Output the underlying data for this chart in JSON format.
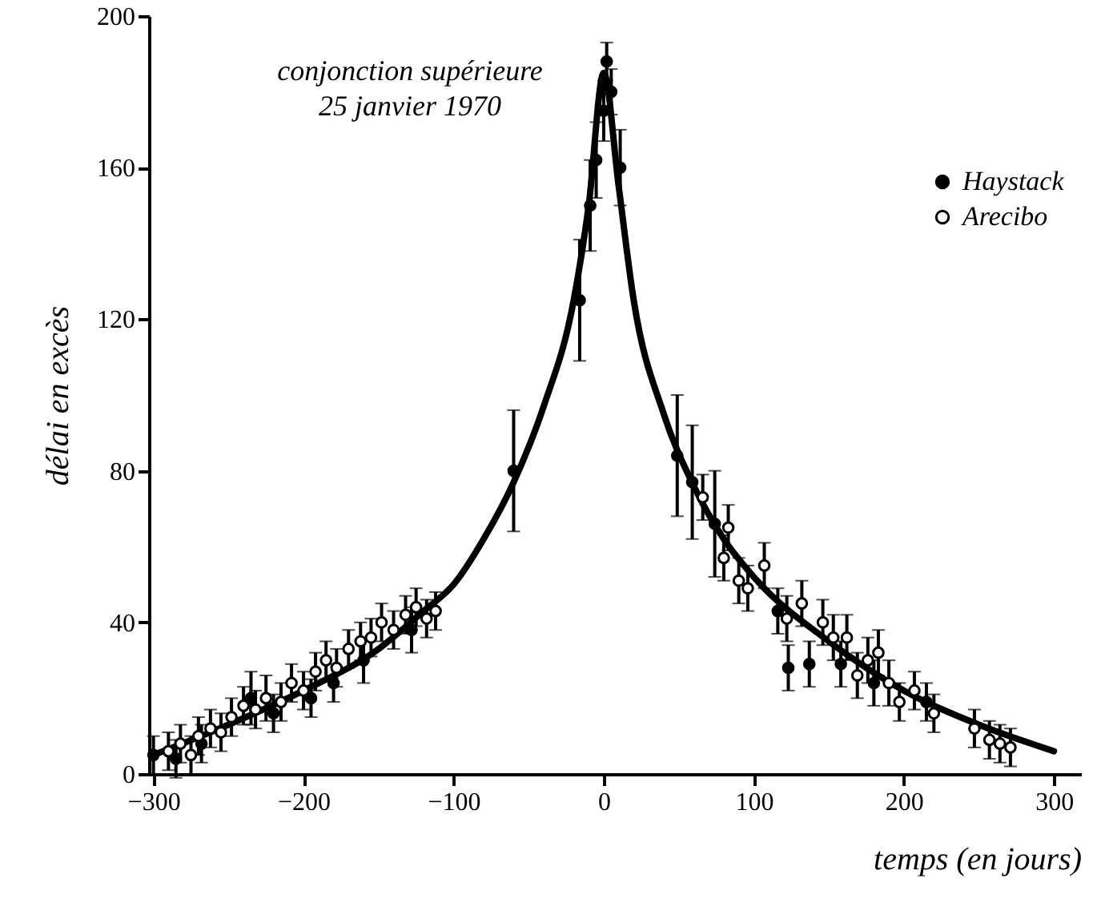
{
  "chart_data": {
    "type": "scatter",
    "xlabel": "temps (en jours)",
    "ylabel": "délai en excès",
    "annotations": [
      "conjonction supérieure\n25 janvier 1970"
    ],
    "xlim": [
      -303,
      318
    ],
    "ylim": [
      0,
      200
    ],
    "xticks": [
      -300,
      -200,
      -100,
      0,
      100,
      200,
      300
    ],
    "yticks": [
      0,
      40,
      80,
      120,
      160,
      200
    ],
    "grid": false,
    "legend": "top right",
    "series": [
      {
        "name": "Haystack",
        "color": "#000000",
        "marker": "circle",
        "x": [
          -300,
          -285,
          -268,
          -245,
          -235,
          -220,
          -195,
          -180,
          -160,
          -128,
          -60,
          -16,
          -9,
          -5,
          0,
          2,
          5,
          8,
          11,
          49,
          59,
          74,
          116,
          123,
          137,
          158,
          180,
          215
        ],
        "values": [
          5,
          4,
          8,
          null,
          20,
          16,
          20,
          24,
          30,
          38,
          80,
          125,
          150,
          162,
          175,
          188,
          180,
          null,
          160,
          84,
          77,
          66,
          43,
          28,
          29,
          29,
          24,
          19
        ],
        "errors": [
          5,
          5,
          5,
          null,
          7,
          5,
          5,
          5,
          6,
          6,
          16,
          16,
          12,
          10,
          8,
          5,
          6,
          null,
          10,
          16,
          15,
          14,
          6,
          6,
          6,
          6,
          6,
          5
        ]
      },
      {
        "name": "Arecibo",
        "color": "#ffffff",
        "marker": "circle",
        "x": [
          -290,
          -282,
          -275,
          -270,
          -262,
          -255,
          -248,
          -240,
          -232,
          -225,
          -215,
          -208,
          -200,
          -192,
          -185,
          -178,
          -170,
          -162,
          -155,
          -148,
          -140,
          -132,
          -125,
          -118,
          -112,
          66,
          83,
          80,
          90,
          96,
          107,
          122,
          132,
          146,
          153,
          162,
          169,
          176,
          183,
          190,
          197,
          207,
          220,
          247,
          257,
          264,
          271
        ],
        "values": [
          6,
          8,
          5,
          10,
          12,
          11,
          15,
          18,
          17,
          20,
          19,
          24,
          22,
          27,
          30,
          28,
          33,
          35,
          36,
          40,
          38,
          42,
          44,
          41,
          43,
          73,
          65,
          57,
          51,
          49,
          55,
          41,
          45,
          40,
          36,
          36,
          26,
          30,
          32,
          24,
          19,
          22,
          16,
          12,
          9,
          8,
          7
        ],
        "errors": [
          5,
          5,
          5,
          5,
          5,
          5,
          5,
          5,
          5,
          6,
          5,
          5,
          5,
          5,
          5,
          5,
          5,
          5,
          5,
          5,
          5,
          5,
          5,
          5,
          5,
          6,
          6,
          6,
          6,
          6,
          6,
          6,
          6,
          6,
          6,
          6,
          6,
          6,
          6,
          6,
          5,
          5,
          5,
          5,
          5,
          5,
          5
        ]
      },
      {
        "type": "line",
        "color": "#000000",
        "x": [
          -300,
          -250,
          -200,
          -150,
          -120,
          -100,
          -80,
          -60,
          -40,
          -20,
          -10,
          0,
          10,
          20,
          40,
          60,
          80,
          100,
          150,
          200,
          250,
          300
        ],
        "values": [
          5,
          13,
          22,
          33,
          43,
          50,
          62,
          77,
          97,
          125,
          150,
          185,
          155,
          125,
          95,
          76,
          62,
          52,
          35,
          22,
          13,
          6
        ]
      }
    ]
  }
}
